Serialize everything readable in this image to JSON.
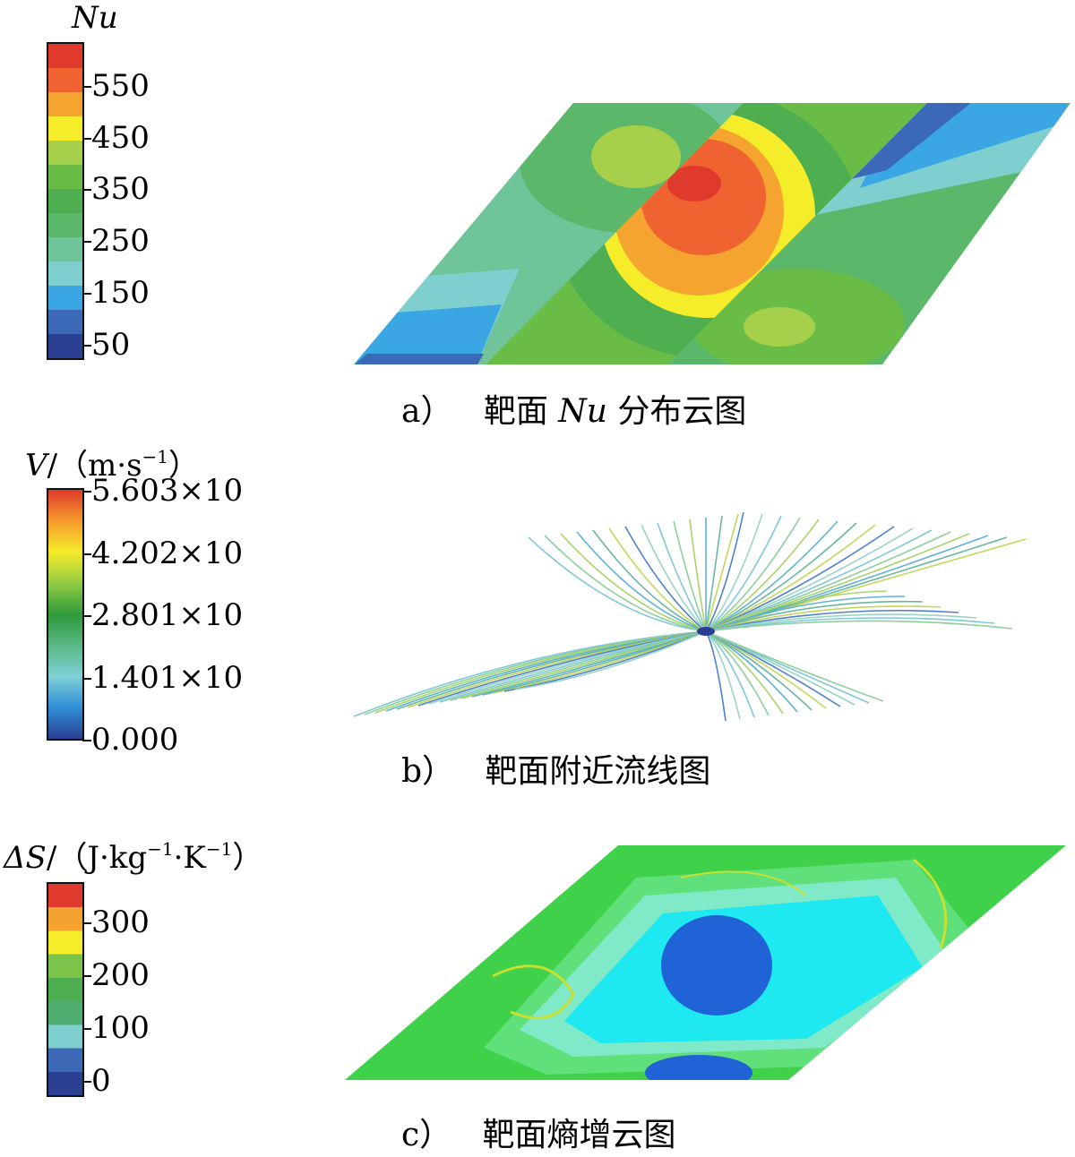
{
  "panel_a": {
    "legend_title": "Nu",
    "colorbar": [
      "#2b3f93",
      "#3c68b8",
      "#3aa6e3",
      "#7fcfcf",
      "#6fc49a",
      "#5bb86a",
      "#4fae4f",
      "#69bd47",
      "#a6d04a",
      "#f5ec2a",
      "#f6a430",
      "#ef6330",
      "#e03a2c"
    ],
    "ticks": [
      "50",
      "150",
      "250",
      "350",
      "450",
      "550"
    ],
    "caption_label": "a）",
    "caption_pre": "靶面 ",
    "caption_var": "Nu",
    "caption_post": " 分布云图"
  },
  "panel_b": {
    "legend_var": "V",
    "legend_unit_open": "/（m·s",
    "legend_unit_exp": "−1",
    "legend_unit_close": "）",
    "colorbar": [
      "#2a3d92",
      "#2f8fd6",
      "#7fd0d6",
      "#5ab884",
      "#2d9a3b",
      "#92cc43",
      "#f5ec2a",
      "#f59a2a",
      "#e03a2c"
    ],
    "ticks": [
      "0.000",
      "1.401×10",
      "2.801×10",
      "4.202×10",
      "5.603×10"
    ],
    "caption_label": "b）",
    "caption_text": "靶面附近流线图"
  },
  "panel_c": {
    "legend_var": "ΔS",
    "legend_unit_a": "/（J·kg",
    "legend_unit_exp1": "−1",
    "legend_unit_b": "·K",
    "legend_unit_exp2": "−1",
    "legend_unit_close": "）",
    "colorbar": [
      "#2b3f93",
      "#3c68b8",
      "#7fcfcf",
      "#4fae6f",
      "#4fae4f",
      "#7cc34a",
      "#f5ec2a",
      "#f4a230",
      "#e03a2c"
    ],
    "ticks": [
      "0",
      "100",
      "200",
      "300"
    ],
    "caption_label": "c）",
    "caption_text": "靶面熵增云图"
  }
}
